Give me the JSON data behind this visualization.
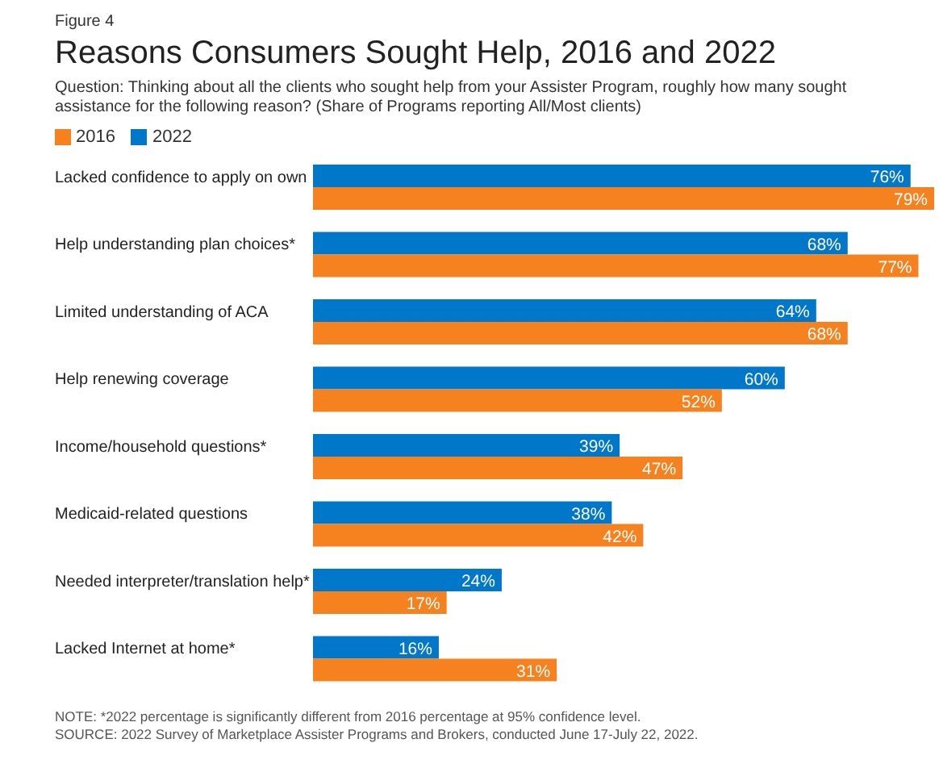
{
  "chart_data": {
    "type": "bar",
    "orientation": "horizontal",
    "title": "Reasons Consumers Sought Help, 2016 and 2022",
    "subtitle": "Figure 4",
    "annotations": [
      "Question: Thinking about all the clients who sought help from your Assister Program, roughly how many sought assistance for the following reason? (Share of Programs reporting All/Most clients)",
      "NOTE: *2022 percentage is significantly different from 2016 percentage at 95% confidence level.",
      "SOURCE: 2022 Survey of Marketplace Assister Programs and Brokers, conducted June 17-July 22, 2022."
    ],
    "categories": [
      "Lacked confidence to apply on own",
      "Help understanding plan choices*",
      "Limited understanding of ACA",
      "Help renewing coverage",
      "Income/household questions*",
      "Medicaid-related questions",
      "Needed interpreter/translation help*",
      "Lacked Internet at home*"
    ],
    "series": [
      {
        "name": "2016",
        "color": "#f5821f",
        "values": [
          79,
          77,
          68,
          52,
          47,
          42,
          17,
          31
        ],
        "value_labels": [
          "79%",
          "77%",
          "68%",
          "52%",
          "47%",
          "42%",
          "17%",
          "31%"
        ]
      },
      {
        "name": "2022",
        "color": "#0077c8",
        "values": [
          76,
          68,
          64,
          60,
          39,
          38,
          24,
          16
        ],
        "value_labels": [
          "76%",
          "68%",
          "64%",
          "60%",
          "39%",
          "38%",
          "24%",
          "16%"
        ]
      }
    ],
    "legend": "top left",
    "grid": false
  }
}
